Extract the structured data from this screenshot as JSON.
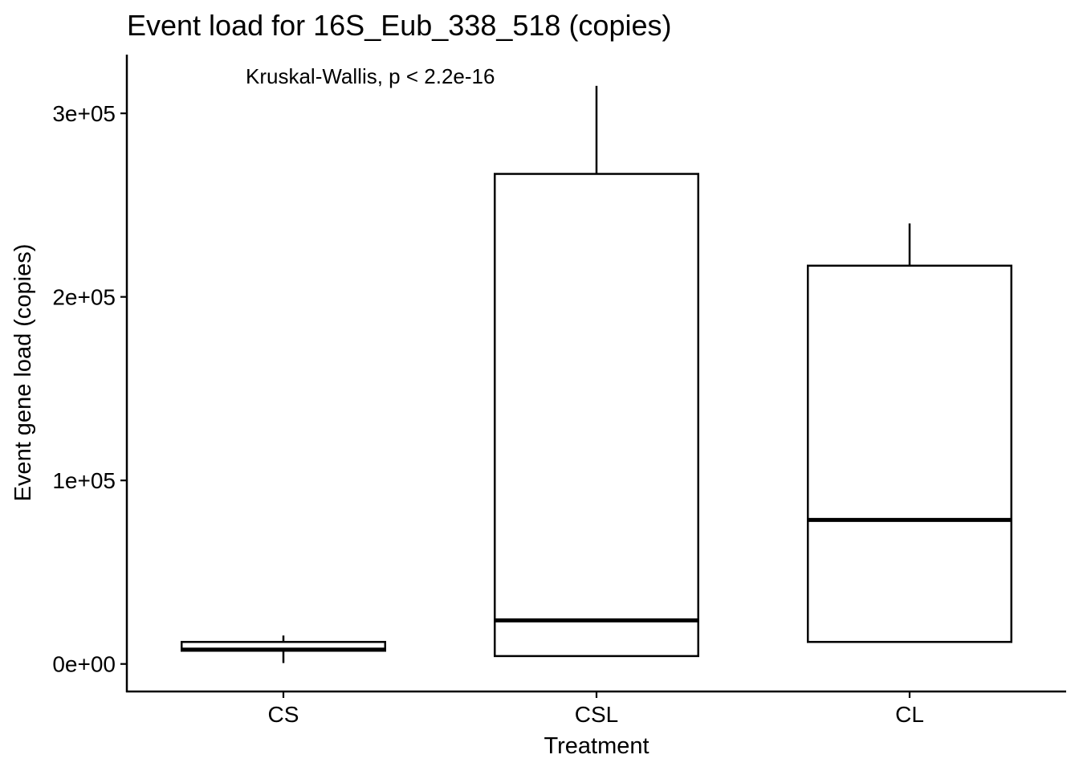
{
  "chart_data": {
    "type": "box",
    "title": "Event load for 16S_Eub_338_518 (copies)",
    "xlabel": "Treatment",
    "ylabel": "Event gene load (copies)",
    "annotation": "Kruskal-Wallis, p < 2.2e-16",
    "ylim": [
      -15000,
      332000
    ],
    "yticks": [
      0,
      100000,
      200000,
      300000
    ],
    "ytick_labels": [
      "0e+00",
      "1e+05",
      "2e+05",
      "3e+05"
    ],
    "categories": [
      "CS",
      "CSL",
      "CL"
    ],
    "boxes": [
      {
        "category": "CS",
        "min": 500,
        "q1": 7200,
        "median": 7800,
        "q3": 12000,
        "max": 15500
      },
      {
        "category": "CSL",
        "min": 4000,
        "q1": 4300,
        "median": 23700,
        "q3": 267000,
        "max": 315000
      },
      {
        "category": "CL",
        "min": 12000,
        "q1": 12000,
        "median": 78500,
        "q3": 217000,
        "max": 240000
      }
    ],
    "grid": false,
    "legend": "none"
  }
}
